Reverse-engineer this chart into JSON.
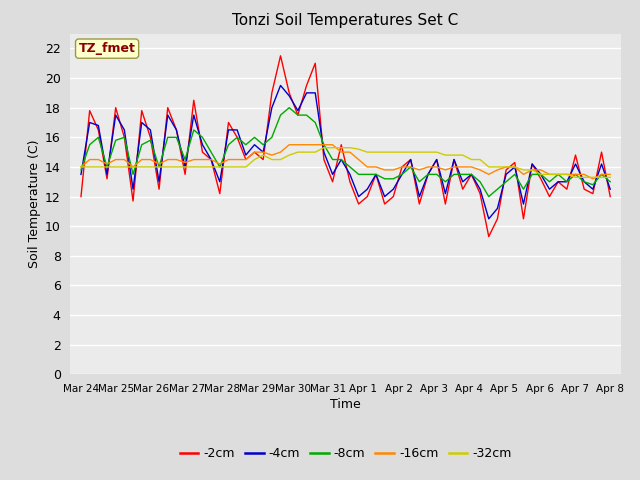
{
  "title": "Tonzi Soil Temperatures Set C",
  "xlabel": "Time",
  "ylabel": "Soil Temperature (C)",
  "annotation": "TZ_fmet",
  "annotation_color": "#8b0000",
  "annotation_bg": "#ffffcc",
  "annotation_edge": "#999944",
  "ylim": [
    0,
    23
  ],
  "yticks": [
    0,
    2,
    4,
    6,
    8,
    10,
    12,
    14,
    16,
    18,
    20,
    22
  ],
  "series_colors": [
    "#ff0000",
    "#0000cc",
    "#00aa00",
    "#ff8800",
    "#cccc00"
  ],
  "series_labels": [
    "-2cm",
    "-4cm",
    "-8cm",
    "-16cm",
    "-32cm"
  ],
  "fig_bg": "#dddddd",
  "plot_bg": "#ebebeb",
  "grid_color": "#ffffff",
  "x_labels": [
    "Mar 24",
    "Mar 25",
    "Mar 26",
    "Mar 27",
    "Mar 28",
    "Mar 29",
    "Mar 30",
    "Mar 31",
    "Apr 1",
    "Apr 2",
    "Apr 3",
    "Apr 4",
    "Apr 5",
    "Apr 6",
    "Apr 7",
    "Apr 8"
  ],
  "series_2cm": [
    12.0,
    17.8,
    16.5,
    13.2,
    18.0,
    16.0,
    11.7,
    17.8,
    16.0,
    12.5,
    18.0,
    16.5,
    13.5,
    18.5,
    15.0,
    14.5,
    12.2,
    17.0,
    16.0,
    14.5,
    15.0,
    14.5,
    19.0,
    21.5,
    19.0,
    17.5,
    19.5,
    21.0,
    14.5,
    13.0,
    15.5,
    13.0,
    11.5,
    12.0,
    13.5,
    11.5,
    12.0,
    14.0,
    14.5,
    11.5,
    13.5,
    14.5,
    11.5,
    14.5,
    12.5,
    13.5,
    12.2,
    9.3,
    10.5,
    13.8,
    14.3,
    10.5,
    14.2,
    13.2,
    12.0,
    13.0,
    12.5,
    14.8,
    12.5,
    12.2,
    15.0,
    12.0
  ],
  "series_4cm": [
    13.5,
    17.0,
    16.8,
    13.5,
    17.5,
    16.5,
    12.5,
    17.0,
    16.5,
    13.0,
    17.5,
    16.5,
    14.0,
    17.5,
    15.5,
    14.5,
    13.0,
    16.5,
    16.5,
    14.8,
    15.5,
    15.0,
    18.0,
    19.5,
    18.8,
    17.8,
    19.0,
    19.0,
    15.0,
    13.5,
    14.5,
    13.5,
    12.0,
    12.5,
    13.5,
    12.0,
    12.5,
    13.5,
    14.5,
    12.0,
    13.5,
    14.5,
    12.2,
    14.5,
    13.0,
    13.5,
    12.5,
    10.5,
    11.2,
    13.5,
    14.0,
    11.5,
    14.2,
    13.5,
    12.5,
    13.0,
    13.0,
    14.2,
    13.0,
    12.5,
    14.2,
    12.5
  ],
  "series_8cm": [
    13.8,
    15.5,
    16.0,
    14.0,
    15.8,
    16.0,
    13.5,
    15.5,
    15.8,
    14.0,
    16.0,
    16.0,
    14.5,
    16.5,
    16.0,
    15.0,
    14.0,
    15.5,
    16.0,
    15.5,
    16.0,
    15.5,
    16.0,
    17.5,
    18.0,
    17.5,
    17.5,
    17.0,
    15.5,
    14.5,
    14.5,
    14.0,
    13.5,
    13.5,
    13.5,
    13.2,
    13.2,
    13.5,
    14.0,
    13.0,
    13.5,
    13.5,
    13.0,
    13.5,
    13.5,
    13.5,
    13.0,
    12.0,
    12.5,
    13.0,
    13.5,
    12.5,
    13.5,
    13.5,
    13.0,
    13.5,
    13.0,
    13.5,
    13.0,
    12.8,
    13.5,
    13.0
  ],
  "series_16cm": [
    14.0,
    14.5,
    14.5,
    14.2,
    14.5,
    14.5,
    14.0,
    14.5,
    14.5,
    14.2,
    14.5,
    14.5,
    14.3,
    14.5,
    14.5,
    14.5,
    14.2,
    14.5,
    14.5,
    14.5,
    15.0,
    15.0,
    14.8,
    15.0,
    15.5,
    15.5,
    15.5,
    15.5,
    15.5,
    15.5,
    15.0,
    15.0,
    14.5,
    14.0,
    14.0,
    13.8,
    13.8,
    14.0,
    14.0,
    13.8,
    14.0,
    14.0,
    13.8,
    14.0,
    14.0,
    14.0,
    13.8,
    13.5,
    13.8,
    14.0,
    14.0,
    13.5,
    13.8,
    13.8,
    13.5,
    13.5,
    13.5,
    13.5,
    13.5,
    13.2,
    13.5,
    13.5
  ],
  "series_32cm": [
    14.0,
    14.0,
    14.0,
    14.0,
    14.0,
    14.0,
    14.0,
    14.0,
    14.0,
    14.0,
    14.0,
    14.0,
    14.0,
    14.0,
    14.0,
    14.0,
    14.0,
    14.0,
    14.0,
    14.0,
    14.5,
    14.8,
    14.5,
    14.5,
    14.8,
    15.0,
    15.0,
    15.0,
    15.3,
    15.3,
    15.3,
    15.3,
    15.2,
    15.0,
    15.0,
    15.0,
    15.0,
    15.0,
    15.0,
    15.0,
    15.0,
    15.0,
    14.8,
    14.8,
    14.8,
    14.5,
    14.5,
    14.0,
    14.0,
    14.0,
    14.0,
    13.8,
    13.8,
    13.5,
    13.5,
    13.5,
    13.5,
    13.3,
    13.3,
    13.3,
    13.3,
    13.3
  ]
}
